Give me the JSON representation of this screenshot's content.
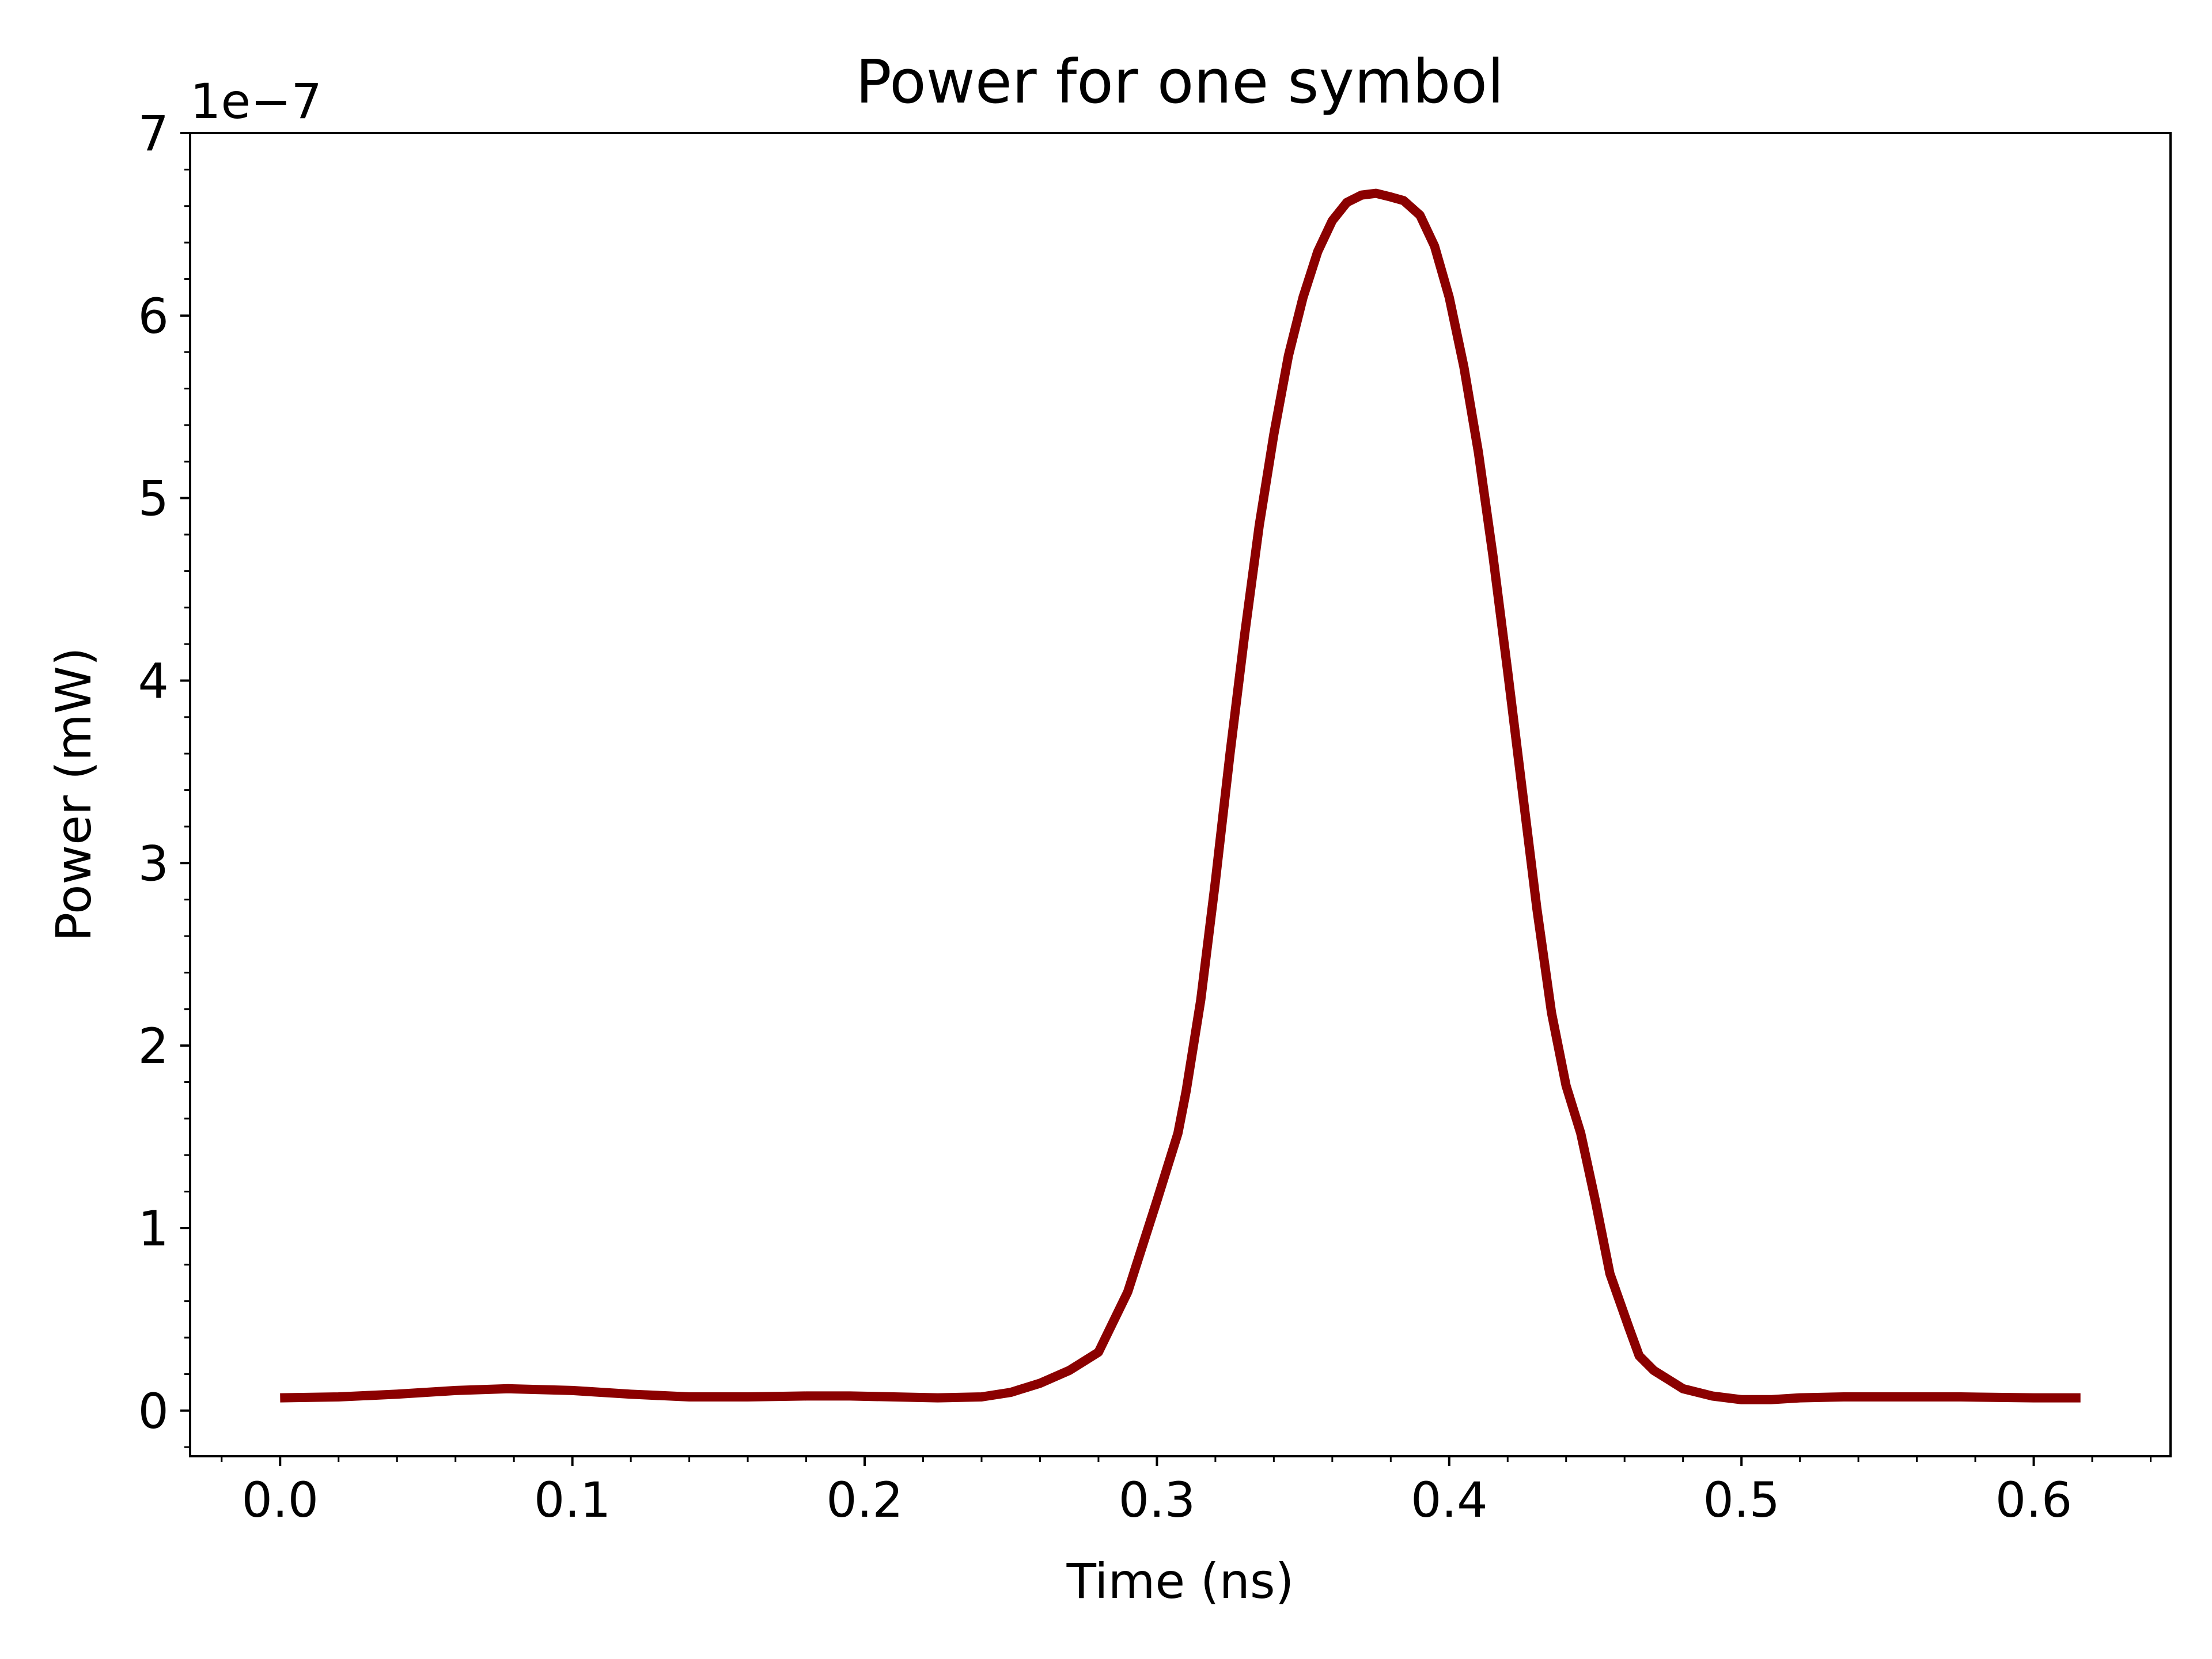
{
  "chart_data": {
    "type": "line",
    "title": "Power for one symbol",
    "xlabel": "Time (ns)",
    "ylabel": "Power (mW)",
    "y_offset_label": "1e−7",
    "y_scale": 1e-07,
    "xlim": [
      -0.0308,
      0.6468
    ],
    "ylim": [
      -0.25,
      7.0
    ],
    "x_ticks": [
      0.0,
      0.1,
      0.2,
      0.3,
      0.4,
      0.5,
      0.6
    ],
    "x_tick_labels": [
      "0.0",
      "0.1",
      "0.2",
      "0.3",
      "0.4",
      "0.5",
      "0.6"
    ],
    "y_ticks": [
      0,
      1,
      2,
      3,
      4,
      5,
      6,
      7
    ],
    "y_tick_labels": [
      "0",
      "1",
      "2",
      "3",
      "4",
      "5",
      "6",
      "7"
    ],
    "x_minor_step": 0.02,
    "y_minor_step": 0.2,
    "grid": false,
    "line_color": "#8b0000",
    "series": [
      {
        "x": [
          0.0,
          0.02,
          0.04,
          0.06,
          0.078,
          0.1,
          0.12,
          0.14,
          0.16,
          0.18,
          0.195,
          0.21,
          0.225,
          0.24,
          0.25,
          0.26,
          0.27,
          0.28,
          0.29,
          0.3,
          0.3072,
          0.31,
          0.315,
          0.32,
          0.325,
          0.33,
          0.335,
          0.34,
          0.345,
          0.35,
          0.355,
          0.36,
          0.365,
          0.37,
          0.375,
          0.38,
          0.3844,
          0.39,
          0.395,
          0.4,
          0.405,
          0.41,
          0.415,
          0.42,
          0.425,
          0.43,
          0.435,
          0.44,
          0.445,
          0.45,
          0.455,
          0.4616,
          0.465,
          0.47,
          0.475,
          0.48,
          0.49,
          0.5,
          0.51,
          0.52,
          0.535,
          0.555,
          0.575,
          0.6,
          0.616
        ],
        "y": [
          0.07,
          0.075,
          0.09,
          0.11,
          0.12,
          0.11,
          0.09,
          0.075,
          0.075,
          0.08,
          0.08,
          0.075,
          0.07,
          0.075,
          0.1,
          0.15,
          0.22,
          0.32,
          0.65,
          1.15,
          1.52,
          1.75,
          2.25,
          2.9,
          3.6,
          4.25,
          4.85,
          5.35,
          5.78,
          6.1,
          6.35,
          6.52,
          6.62,
          6.66,
          6.67,
          6.65,
          6.63,
          6.55,
          6.38,
          6.1,
          5.72,
          5.25,
          4.68,
          4.05,
          3.4,
          2.75,
          2.18,
          1.78,
          1.52,
          1.15,
          0.75,
          0.45,
          0.3,
          0.22,
          0.17,
          0.12,
          0.08,
          0.06,
          0.06,
          0.07,
          0.075,
          0.075,
          0.075,
          0.07,
          0.07
        ]
      }
    ]
  }
}
